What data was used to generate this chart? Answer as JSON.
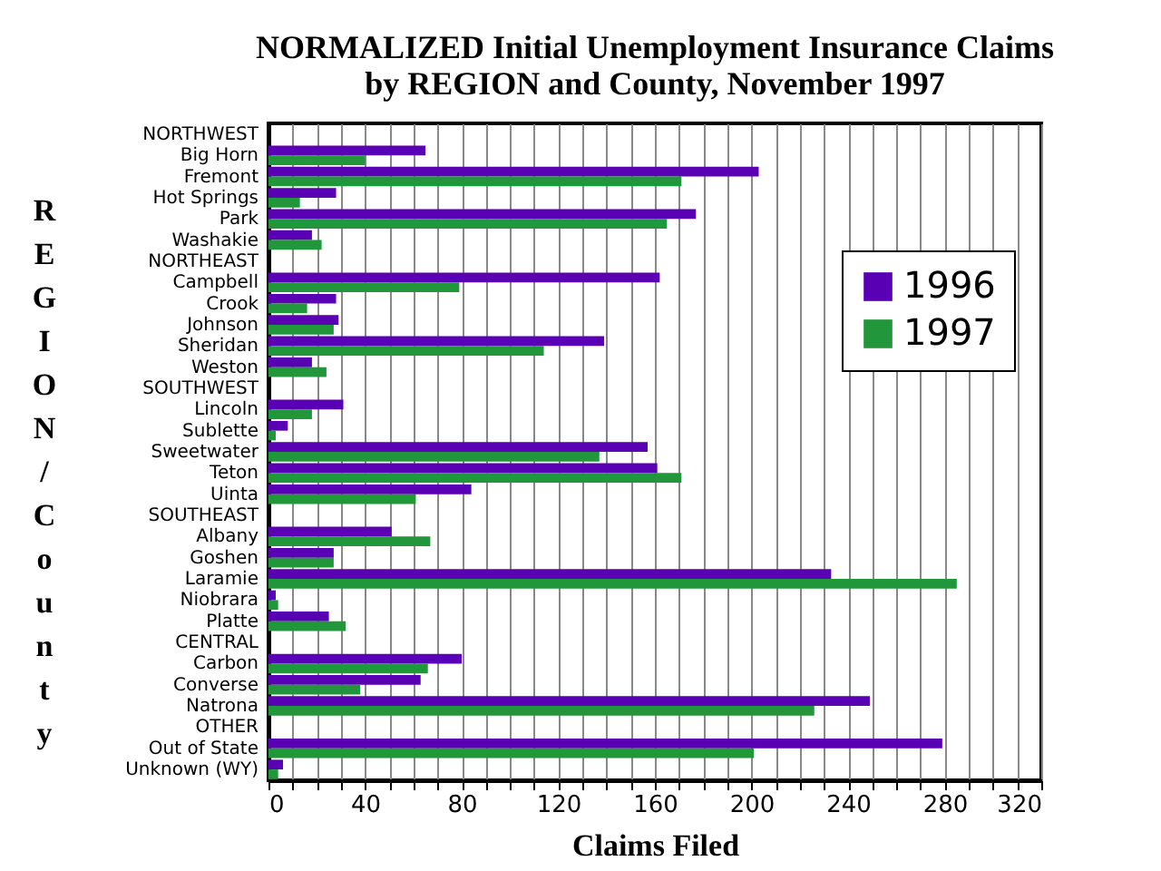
{
  "chart_data": {
    "type": "bar",
    "orientation": "horizontal",
    "title": "NORMALIZED Initial Unemployment Insurance Claims\nby REGION and County, November 1997",
    "xlabel": "Claims Filed",
    "ylabel": "REGION/County",
    "categories": [
      "NORTHWEST",
      "Big Horn",
      "Fremont",
      "Hot Springs",
      "Park",
      "Washakie",
      "NORTHEAST",
      "Campbell",
      "Crook",
      "Johnson",
      "Sheridan",
      "Weston",
      "SOUTHWEST",
      "Lincoln",
      "Sublette",
      "Sweetwater",
      "Teton",
      "Uinta",
      "SOUTHEAST",
      "Albany",
      "Goshen",
      "Laramie",
      "Niobrara",
      "Platte",
      "CENTRAL",
      "Carbon",
      "Converse",
      "Natrona",
      "OTHER",
      "Out of State",
      "Unknown (WY)"
    ],
    "series": [
      {
        "name": "1996",
        "color": "#5a00b4",
        "values": [
          null,
          65,
          203,
          28,
          177,
          18,
          null,
          162,
          28,
          29,
          139,
          18,
          null,
          31,
          8,
          157,
          161,
          84,
          null,
          51,
          27,
          233,
          3,
          25,
          null,
          80,
          63,
          249,
          null,
          279,
          6
        ]
      },
      {
        "name": "1997",
        "color": "#21963a",
        "values": [
          null,
          40,
          171,
          13,
          165,
          22,
          null,
          79,
          16,
          27,
          114,
          24,
          null,
          18,
          3,
          137,
          171,
          61,
          null,
          67,
          27,
          285,
          4,
          32,
          null,
          66,
          38,
          226,
          null,
          201,
          4
        ]
      }
    ],
    "xlim": [
      0,
      320
    ],
    "xticks": [
      0,
      {
        "value": 10,
        "label": null
      },
      {
        "value": 20,
        "label": null
      },
      {
        "value": 30,
        "label": null
      },
      40,
      {
        "value": 50,
        "label": null
      },
      {
        "value": 60,
        "label": null
      },
      {
        "value": 70,
        "label": null
      },
      80,
      {
        "value": 90,
        "label": null
      },
      {
        "value": 100,
        "label": null
      },
      {
        "value": 110,
        "label": null
      },
      120,
      {
        "value": 130,
        "label": null
      },
      {
        "value": 140,
        "label": null
      },
      {
        "value": 150,
        "label": null
      },
      160,
      {
        "value": 170,
        "label": null
      },
      {
        "value": 180,
        "label": null
      },
      {
        "value": 190,
        "label": null
      },
      200,
      {
        "value": 210,
        "label": null
      },
      {
        "value": 220,
        "label": null
      },
      {
        "value": 230,
        "label": null
      },
      240,
      {
        "value": 250,
        "label": null
      },
      {
        "value": 260,
        "label": null
      },
      {
        "value": 270,
        "label": null
      },
      280,
      {
        "value": 290,
        "label": null
      },
      {
        "value": 300,
        "label": null
      },
      {
        "value": 310,
        "label": null
      },
      320
    ],
    "grid": "x",
    "legend": "right"
  }
}
